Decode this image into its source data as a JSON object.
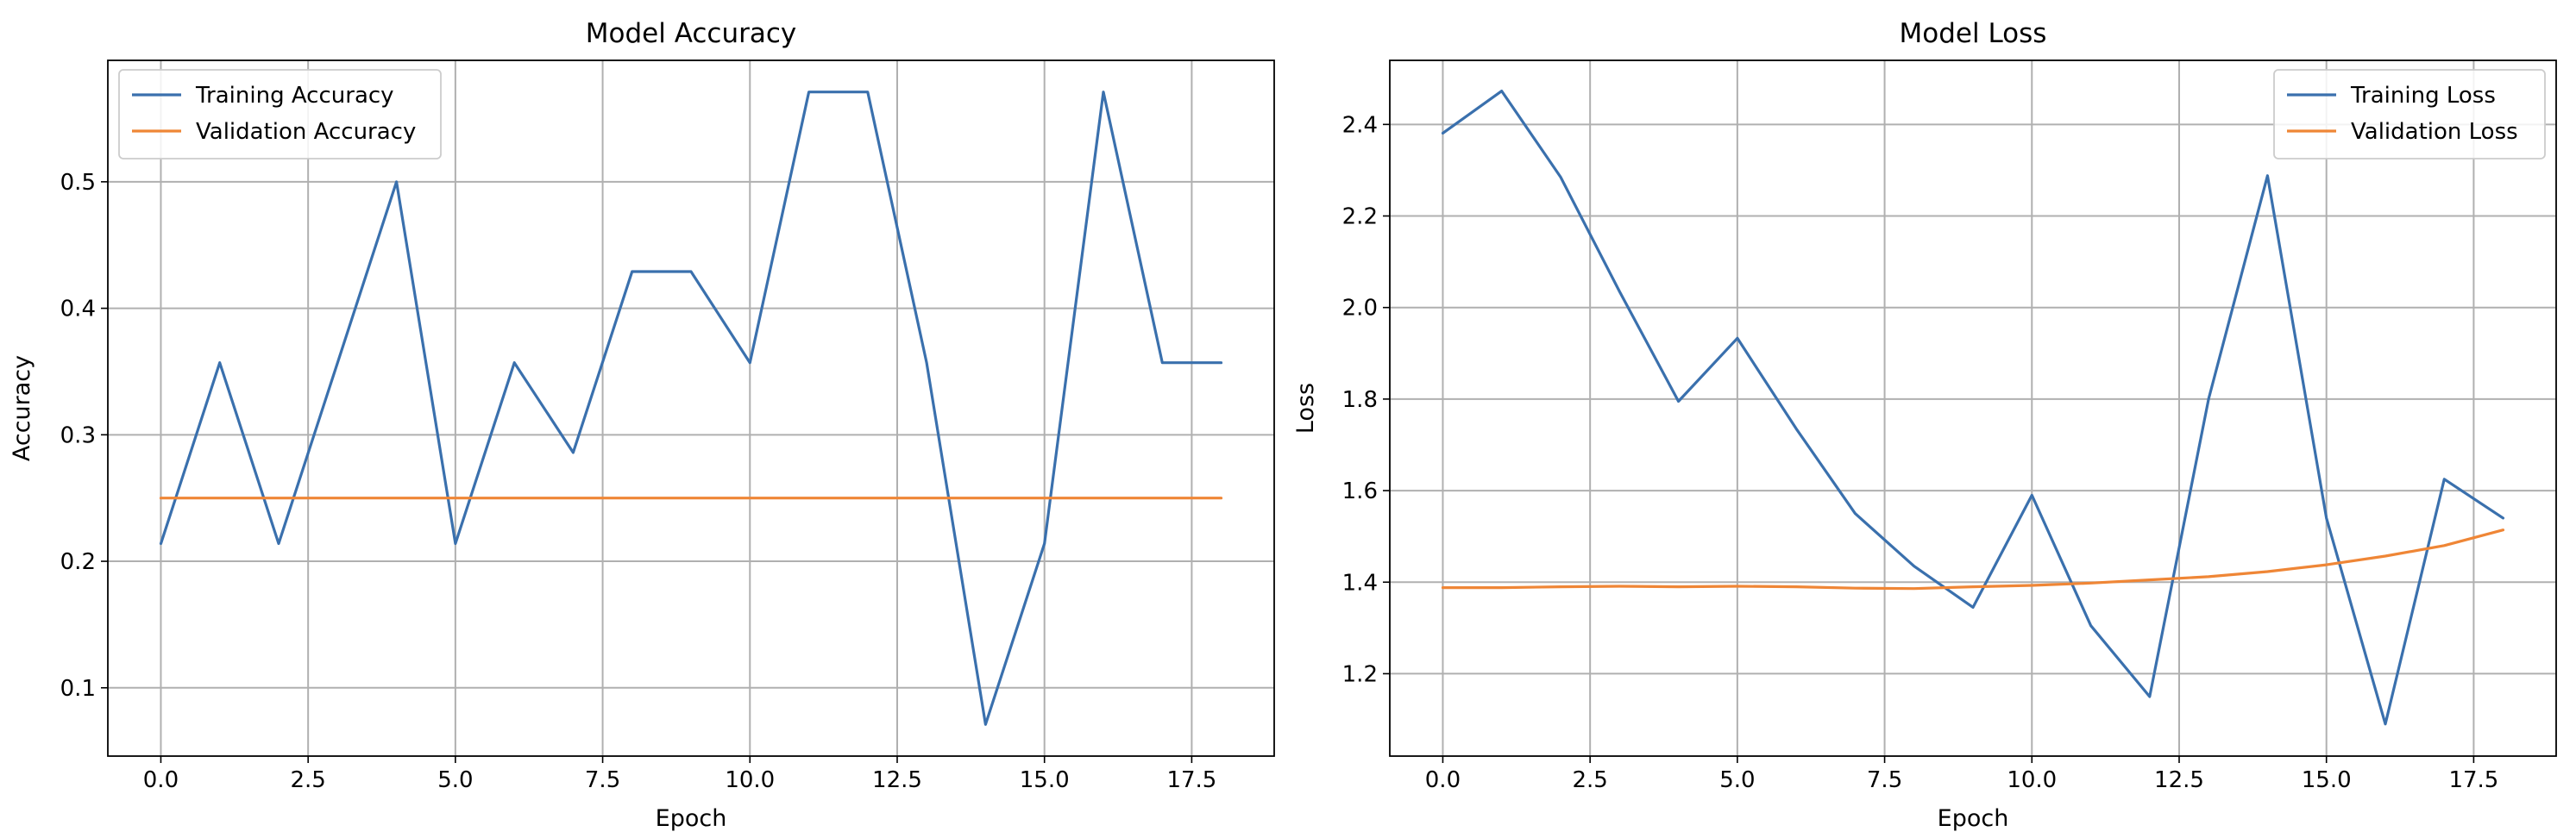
{
  "chart_data": [
    {
      "type": "line",
      "title": "Model Accuracy",
      "xlabel": "Epoch",
      "ylabel": "Accuracy",
      "xlim": [
        -0.9,
        18.9
      ],
      "ylim": [
        0.046,
        0.596
      ],
      "xticks": [
        0,
        2.5,
        5,
        7.5,
        10,
        12.5,
        15,
        17.5
      ],
      "xtick_labels": [
        "0.0",
        "2.5",
        "5.0",
        "7.5",
        "10.0",
        "12.5",
        "15.0",
        "17.5"
      ],
      "yticks": [
        0.1,
        0.2,
        0.3,
        0.4,
        0.5
      ],
      "ytick_labels": [
        "0.1",
        "0.2",
        "0.3",
        "0.4",
        "0.5"
      ],
      "grid": true,
      "legend_position": "top-left",
      "x": [
        0,
        1,
        2,
        3,
        4,
        5,
        6,
        7,
        8,
        9,
        10,
        11,
        12,
        13,
        14,
        15,
        16,
        17,
        18
      ],
      "series": [
        {
          "name": "Training Accuracy",
          "color": "#3a70ad",
          "values": [
            0.214,
            0.357,
            0.214,
            0.357,
            0.5,
            0.214,
            0.357,
            0.286,
            0.429,
            0.429,
            0.357,
            0.571,
            0.571,
            0.357,
            0.071,
            0.214,
            0.571,
            0.357,
            0.357
          ]
        },
        {
          "name": "Validation Accuracy",
          "color": "#ef8636",
          "values": [
            0.25,
            0.25,
            0.25,
            0.25,
            0.25,
            0.25,
            0.25,
            0.25,
            0.25,
            0.25,
            0.25,
            0.25,
            0.25,
            0.25,
            0.25,
            0.25,
            0.25,
            0.25,
            0.25
          ]
        }
      ]
    },
    {
      "type": "line",
      "title": "Model Loss",
      "xlabel": "Epoch",
      "ylabel": "Loss",
      "xlim": [
        -0.9,
        18.9
      ],
      "ylim": [
        1.02,
        2.54
      ],
      "xticks": [
        0,
        2.5,
        5,
        7.5,
        10,
        12.5,
        15,
        17.5
      ],
      "xtick_labels": [
        "0.0",
        "2.5",
        "5.0",
        "7.5",
        "10.0",
        "12.5",
        "15.0",
        "17.5"
      ],
      "yticks": [
        1.2,
        1.4,
        1.6,
        1.8,
        2.0,
        2.2,
        2.4
      ],
      "ytick_labels": [
        "1.2",
        "1.4",
        "1.6",
        "1.8",
        "2.0",
        "2.2",
        "2.4"
      ],
      "grid": true,
      "legend_position": "top-right",
      "x": [
        0,
        1,
        2,
        3,
        4,
        5,
        6,
        7,
        8,
        9,
        10,
        11,
        12,
        13,
        14,
        15,
        16,
        17,
        18
      ],
      "series": [
        {
          "name": "Training Loss",
          "color": "#3a70ad",
          "values": [
            2.381,
            2.473,
            2.285,
            2.035,
            1.795,
            1.933,
            1.735,
            1.55,
            1.435,
            1.345,
            1.59,
            1.305,
            1.15,
            1.8,
            2.288,
            1.54,
            1.09,
            1.625,
            1.54
          ]
        },
        {
          "name": "Validation Loss",
          "color": "#ef8636",
          "values": [
            1.388,
            1.388,
            1.39,
            1.391,
            1.39,
            1.391,
            1.39,
            1.387,
            1.386,
            1.39,
            1.393,
            1.398,
            1.405,
            1.412,
            1.423,
            1.438,
            1.457,
            1.48,
            1.514
          ]
        }
      ]
    }
  ]
}
